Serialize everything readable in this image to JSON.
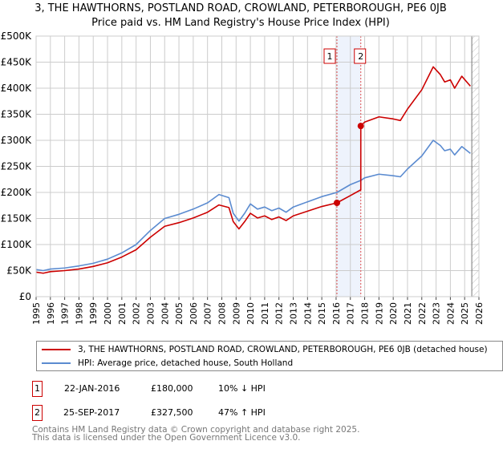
{
  "header": {
    "title": "3, THE HAWTHORNS, POSTLAND ROAD, CROWLAND, PETERBOROUGH, PE6 0JB",
    "subtitle": "Price paid vs. HM Land Registry's House Price Index (HPI)"
  },
  "colors": {
    "property": "#cc0000",
    "hpi": "#5b8bd0",
    "band": "#eef3fc",
    "grid": "#cccccc"
  },
  "chart_data": {
    "type": "line",
    "title": "Price paid vs. HM Land Registry's House Price Index (HPI)",
    "xlim": [
      1995,
      2026
    ],
    "ylim": [
      0,
      500000
    ],
    "y_ticks": [
      {
        "v": 0,
        "label": "£0"
      },
      {
        "v": 50000,
        "label": "£50K"
      },
      {
        "v": 100000,
        "label": "£100K"
      },
      {
        "v": 150000,
        "label": "£150K"
      },
      {
        "v": 200000,
        "label": "£200K"
      },
      {
        "v": 250000,
        "label": "£250K"
      },
      {
        "v": 300000,
        "label": "£300K"
      },
      {
        "v": 350000,
        "label": "£350K"
      },
      {
        "v": 400000,
        "label": "£400K"
      },
      {
        "v": 450000,
        "label": "£450K"
      },
      {
        "v": 500000,
        "label": "£500K"
      }
    ],
    "x_ticks": [
      "1995",
      "1996",
      "1997",
      "1998",
      "1999",
      "2000",
      "2001",
      "2002",
      "2003",
      "2004",
      "2005",
      "2006",
      "2007",
      "2008",
      "2009",
      "2010",
      "2011",
      "2012",
      "2013",
      "2014",
      "2015",
      "2016",
      "2017",
      "2018",
      "2019",
      "2020",
      "2021",
      "2022",
      "2023",
      "2024",
      "2025",
      "2026"
    ],
    "grid": true,
    "series": [
      {
        "name": "3, THE HAWTHORNS, POSTLAND ROAD, CROWLAND, PETERBOROUGH, PE6 0JB (detached house)",
        "color": "#cc0000",
        "points": [
          [
            1995,
            47000
          ],
          [
            1995.5,
            45000
          ],
          [
            1996,
            48000
          ],
          [
            1997,
            50000
          ],
          [
            1998,
            53000
          ],
          [
            1999,
            58000
          ],
          [
            2000,
            65000
          ],
          [
            2001,
            76000
          ],
          [
            2002,
            90000
          ],
          [
            2003,
            114000
          ],
          [
            2004,
            135000
          ],
          [
            2005,
            142000
          ],
          [
            2006,
            151000
          ],
          [
            2007,
            162000
          ],
          [
            2007.8,
            176000
          ],
          [
            2008.5,
            171000
          ],
          [
            2008.8,
            144000
          ],
          [
            2009.2,
            130000
          ],
          [
            2009.6,
            144000
          ],
          [
            2010,
            160000
          ],
          [
            2010.5,
            151000
          ],
          [
            2011,
            155000
          ],
          [
            2011.5,
            148000
          ],
          [
            2012,
            153000
          ],
          [
            2012.5,
            146000
          ],
          [
            2013,
            155000
          ],
          [
            2014,
            164000
          ],
          [
            2015,
            173000
          ],
          [
            2016.06,
            180000
          ],
          [
            2017,
            194000
          ],
          [
            2017.73,
            205000
          ],
          [
            2017.73,
            327500
          ],
          [
            2018,
            335000
          ],
          [
            2019,
            345000
          ],
          [
            2020,
            341000
          ],
          [
            2020.5,
            338000
          ],
          [
            2021,
            360000
          ],
          [
            2022,
            397000
          ],
          [
            2022.8,
            441000
          ],
          [
            2023.3,
            426000
          ],
          [
            2023.6,
            412000
          ],
          [
            2024,
            416000
          ],
          [
            2024.3,
            400000
          ],
          [
            2024.8,
            423000
          ],
          [
            2025.4,
            404000
          ]
        ]
      },
      {
        "name": "HPI: Average price, detached house, South Holland",
        "color": "#5b8bd0",
        "points": [
          [
            1995,
            52000
          ],
          [
            1995.5,
            50000
          ],
          [
            1996,
            53000
          ],
          [
            1997,
            55000
          ],
          [
            1998,
            59000
          ],
          [
            1999,
            64000
          ],
          [
            2000,
            72000
          ],
          [
            2001,
            84000
          ],
          [
            2002,
            100000
          ],
          [
            2003,
            127000
          ],
          [
            2004,
            150000
          ],
          [
            2005,
            158000
          ],
          [
            2006,
            168000
          ],
          [
            2007,
            180000
          ],
          [
            2007.8,
            196000
          ],
          [
            2008.5,
            190000
          ],
          [
            2008.8,
            160000
          ],
          [
            2009.2,
            145000
          ],
          [
            2009.6,
            160000
          ],
          [
            2010,
            178000
          ],
          [
            2010.5,
            168000
          ],
          [
            2011,
            172000
          ],
          [
            2011.5,
            165000
          ],
          [
            2012,
            170000
          ],
          [
            2012.5,
            162000
          ],
          [
            2013,
            172000
          ],
          [
            2014,
            182000
          ],
          [
            2015,
            192000
          ],
          [
            2016.06,
            200000
          ],
          [
            2017,
            215000
          ],
          [
            2017.73,
            223000
          ],
          [
            2018,
            228000
          ],
          [
            2019,
            235000
          ],
          [
            2020,
            232000
          ],
          [
            2020.5,
            230000
          ],
          [
            2021,
            245000
          ],
          [
            2022,
            270000
          ],
          [
            2022.8,
            300000
          ],
          [
            2023.3,
            290000
          ],
          [
            2023.6,
            280000
          ],
          [
            2024,
            283000
          ],
          [
            2024.3,
            272000
          ],
          [
            2024.8,
            288000
          ],
          [
            2025.4,
            275000
          ]
        ]
      }
    ],
    "sales": [
      {
        "id": "1",
        "x": 2016.06,
        "y": 180000
      },
      {
        "id": "2",
        "x": 2017.73,
        "y": 327500
      }
    ],
    "forecast_hatch_from": 2025.5,
    "legend_position": "below"
  },
  "transactions": [
    {
      "id": "1",
      "date": "22-JAN-2016",
      "price": "£180,000",
      "hpi": "10% ↓ HPI"
    },
    {
      "id": "2",
      "date": "25-SEP-2017",
      "price": "£327,500",
      "hpi": "47% ↑ HPI"
    }
  ],
  "footer": {
    "line1": "Contains HM Land Registry data © Crown copyright and database right 2025.",
    "line2": "This data is licensed under the Open Government Licence v3.0."
  }
}
